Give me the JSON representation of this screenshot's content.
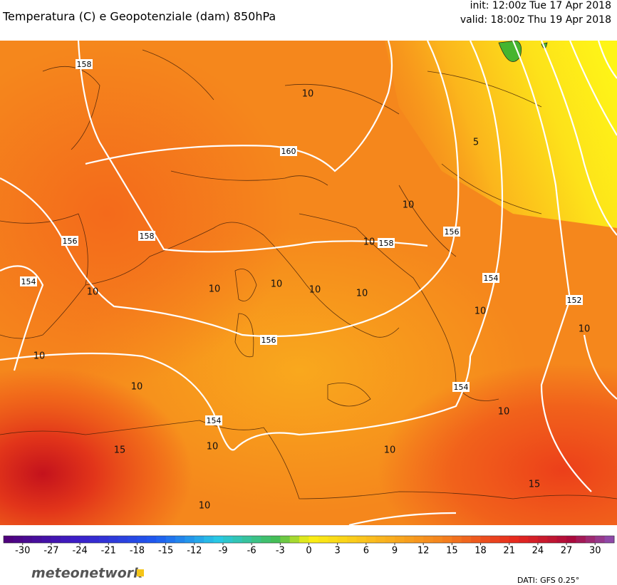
{
  "header": {
    "title": "Temperatura (C) e Geopotenziale (dam) 850hPa",
    "init": "init: 12:00z Tue 17 Apr 2018",
    "valid": "valid: 18:00z Thu 19 Apr 2018"
  },
  "map": {
    "geopotential_labels": [
      158,
      160,
      158,
      156,
      154,
      158,
      156,
      154,
      152,
      156,
      154,
      154
    ],
    "temperature_labels": [
      10,
      10,
      10,
      10,
      10,
      10,
      10,
      10,
      10,
      10,
      10,
      15,
      15,
      5,
      10,
      10,
      10,
      10,
      10
    ]
  },
  "colorbar": {
    "range": [
      -32,
      32
    ],
    "ticks": [
      -30,
      -27,
      -24,
      -21,
      -18,
      -15,
      -12,
      -9,
      -6,
      -3,
      0,
      3,
      6,
      9,
      12,
      15,
      18,
      21,
      24,
      27,
      30
    ]
  },
  "footer": {
    "logo": "meteonetwork",
    "source": "DATI: GFS 0.25°"
  }
}
